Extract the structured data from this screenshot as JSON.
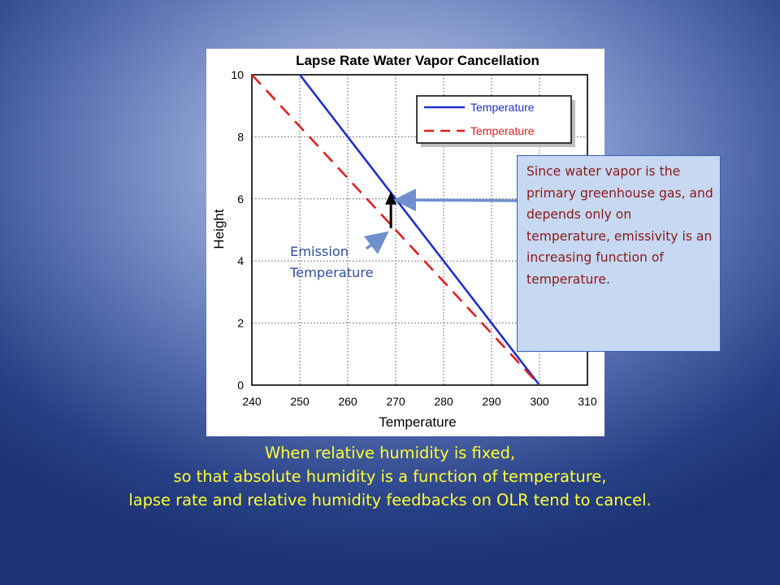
{
  "chart_data": {
    "type": "line",
    "title": "Lapse Rate Water Vapor Cancellation",
    "xlabel": "Temperature",
    "ylabel": "Height",
    "xlim": [
      240,
      310
    ],
    "ylim": [
      0,
      10
    ],
    "xticks": [
      240,
      250,
      260,
      270,
      280,
      290,
      300,
      310
    ],
    "yticks": [
      0,
      2,
      4,
      6,
      8,
      10
    ],
    "grid": true,
    "legend_position": "top-right",
    "series": [
      {
        "name": "Temperature",
        "color": "#1f2fcc",
        "style": "solid",
        "x": [
          250,
          300
        ],
        "y": [
          10,
          0
        ]
      },
      {
        "name": "Temperature",
        "color": "#e02020",
        "style": "dashed",
        "x": [
          240,
          300
        ],
        "y": [
          10,
          0
        ]
      }
    ],
    "marker": {
      "x": 269,
      "y": 6,
      "color": "#000000"
    }
  },
  "annotations": {
    "emission_label": [
      "Emission",
      "Temperature"
    ],
    "callout": "Since water vapor is the primary greenhouse gas, and depends only on temperature, emissivity is an increasing function of temperature.",
    "arrow_color": "#6f8fcf"
  },
  "caption": [
    "When relative humidity is fixed,",
    "so that absolute humidity is a function of temperature,",
    "lapse rate and relative humidity feedbacks on OLR tend to cancel."
  ]
}
